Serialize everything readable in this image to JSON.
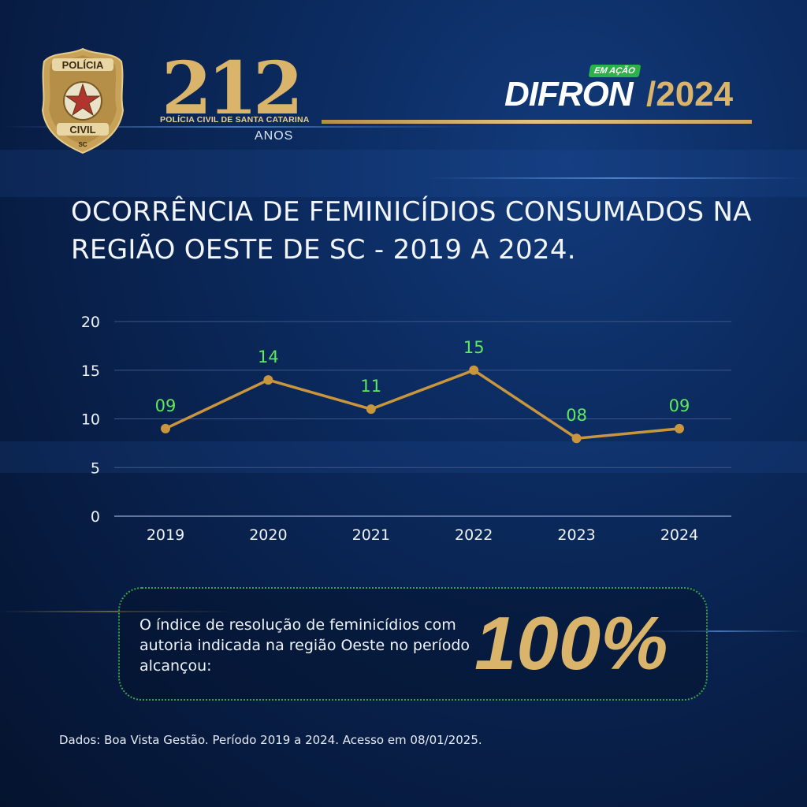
{
  "header": {
    "badge": {
      "top_text": "POLÍCIA",
      "bottom_text": "CIVIL",
      "state": "SC"
    },
    "anniversary": {
      "number": "212",
      "org": "POLÍCIA CIVIL DE SANTA CATARINA",
      "unit": "ANOS"
    },
    "program": {
      "tag": "EM AÇÃO",
      "name": "DIFRON",
      "year": "/2024"
    }
  },
  "title": "OCORRÊNCIA DE FEMINICÍDIOS CONSUMADOS NA REGIÃO OESTE DE SC - 2019 A 2024.",
  "chart_data": {
    "type": "line",
    "x": [
      "2019",
      "2020",
      "2021",
      "2022",
      "2023",
      "2024"
    ],
    "values": [
      9,
      14,
      11,
      15,
      8,
      9
    ],
    "data_labels": [
      "09",
      "14",
      "11",
      "15",
      "08",
      "09"
    ],
    "ylim": [
      0,
      20
    ],
    "yticks": [
      0,
      5,
      10,
      15,
      20
    ],
    "grid": true,
    "line_color": "#c9963e",
    "label_color": "#5dea5d"
  },
  "callout": {
    "text": "O índice de resolução de feminicídios com autoria indicada na região Oeste no período alcançou:",
    "value": "100%"
  },
  "source": "Dados: Boa Vista Gestão. Período 2019 a 2024. Acesso em 08/01/2025.",
  "colors": {
    "gold": "#d9b46a",
    "green": "#35a54a",
    "background": "#0b2a5e"
  }
}
